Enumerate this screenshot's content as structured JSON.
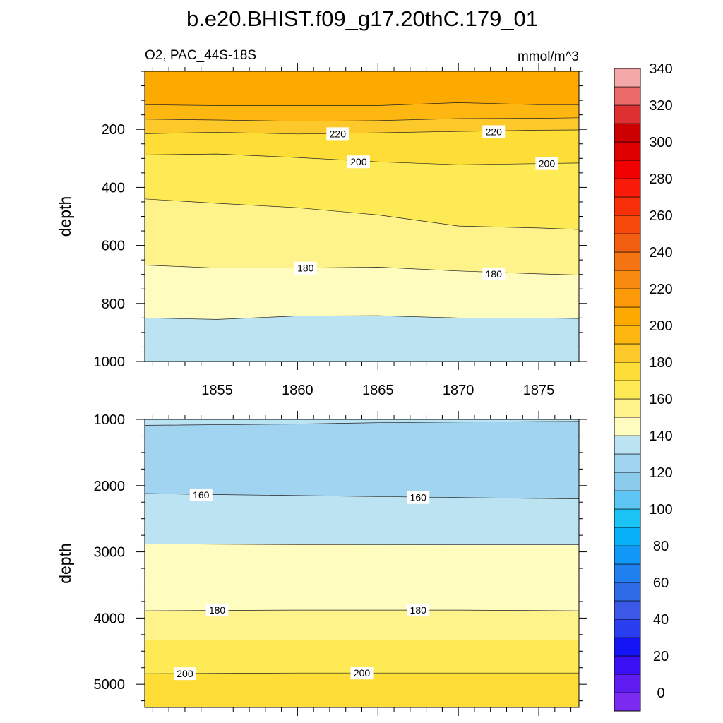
{
  "title": "b.e20.BHIST.f09_g17.20thC.179_01",
  "left_subtitle": "O2, PAC_44S-18S",
  "right_subtitle": "mmol/m^3",
  "chart_data": {
    "type": "heatmap",
    "xlabel": "",
    "xlim": [
      1850.5,
      1877.5
    ],
    "xticks": [
      1855,
      1860,
      1865,
      1870,
      1875
    ],
    "panels": [
      {
        "ylabel": "depth",
        "ylim": [
          0,
          1000
        ],
        "yticks": [
          200,
          400,
          600,
          800,
          1000
        ],
        "bands": [
          {
            "level": 240,
            "color": "#fdaa00",
            "contour": [
              [
                1850.5,
                115
              ],
              [
                1855,
                118
              ],
              [
                1860,
                118
              ],
              [
                1865,
                118
              ],
              [
                1870,
                108
              ],
              [
                1875,
                115
              ],
              [
                1877.5,
                115
              ]
            ]
          },
          {
            "level": 230,
            "color": "#fdb710",
            "contour": [
              [
                1850.5,
                165
              ],
              [
                1855,
                168
              ],
              [
                1860,
                172
              ],
              [
                1865,
                170
              ],
              [
                1870,
                163
              ],
              [
                1875,
                162
              ],
              [
                1877.5,
                160
              ]
            ]
          },
          {
            "level": 220,
            "color": "#fdc92a",
            "contour": [
              [
                1850.5,
                215
              ],
              [
                1855,
                210
              ],
              [
                1860,
                216
              ],
              [
                1865,
                212
              ],
              [
                1870,
                207
              ],
              [
                1875,
                203
              ],
              [
                1877.5,
                202
              ]
            ]
          },
          {
            "level": 210,
            "color": "#fddd36",
            "contour": [
              [
                1850.5,
                288
              ],
              [
                1855,
                285
              ],
              [
                1860,
                297
              ],
              [
                1865,
                312
              ],
              [
                1870,
                322
              ],
              [
                1875,
                318
              ],
              [
                1877.5,
                316
              ]
            ]
          },
          {
            "level": 200,
            "color": "#fdea55",
            "contour": [
              [
                1850.5,
                440
              ],
              [
                1855,
                455
              ],
              [
                1860,
                470
              ],
              [
                1865,
                495
              ],
              [
                1870,
                533
              ],
              [
                1875,
                540
              ],
              [
                1877.5,
                545
              ]
            ]
          },
          {
            "level": 190,
            "color": "#fef38a",
            "contour": [
              [
                1850.5,
                668
              ],
              [
                1855,
                678
              ],
              [
                1860,
                678
              ],
              [
                1865,
                675
              ],
              [
                1870,
                688
              ],
              [
                1875,
                698
              ],
              [
                1877.5,
                702
              ]
            ]
          },
          {
            "level": 180,
            "color": "#fffcc0",
            "contour": [
              [
                1850.5,
                850
              ],
              [
                1855,
                855
              ],
              [
                1860,
                843
              ],
              [
                1865,
                842
              ],
              [
                1870,
                850
              ],
              [
                1875,
                850
              ],
              [
                1877.5,
                852
              ]
            ]
          },
          {
            "level": 170,
            "color": "#bce3f2",
            "contour": null
          }
        ],
        "contour_labels": [
          {
            "text": "220",
            "x": 1862.5,
            "y": 215
          },
          {
            "text": "220",
            "x": 1872.2,
            "y": 208
          },
          {
            "text": "200",
            "x": 1863.8,
            "y": 312
          },
          {
            "text": "200",
            "x": 1875.5,
            "y": 318
          },
          {
            "text": "180",
            "x": 1860.5,
            "y": 678
          },
          {
            "text": "180",
            "x": 1872.2,
            "y": 698
          }
        ]
      },
      {
        "ylabel": "depth",
        "ylim": [
          1000,
          5350
        ],
        "yticks": [
          1000,
          2000,
          3000,
          4000,
          5000
        ],
        "bands": [
          {
            "level": 160,
            "color": "#bce3f2",
            "contour": [
              [
                1850.5,
                1090
              ],
              [
                1860,
                1070
              ],
              [
                1865,
                1050
              ],
              [
                1870,
                1040
              ],
              [
                1877.5,
                1030
              ]
            ]
          },
          {
            "level": 150,
            "color": "#a1d4f0",
            "contour": [
              [
                1850.5,
                2120
              ],
              [
                1855,
                2135
              ],
              [
                1860,
                2150
              ],
              [
                1865,
                2165
              ],
              [
                1870,
                2180
              ],
              [
                1877.5,
                2200
              ]
            ]
          },
          {
            "level": 160,
            "color": "#bce3f2",
            "contour": [
              [
                1850.5,
                2880
              ],
              [
                1860,
                2890
              ],
              [
                1870,
                2895
              ],
              [
                1877.5,
                2895
              ]
            ]
          },
          {
            "level": 170,
            "color": "#fffcc0",
            "contour": [
              [
                1850.5,
                3890
              ],
              [
                1860,
                3880
              ],
              [
                1870,
                3880
              ],
              [
                1877.5,
                3890
              ]
            ]
          },
          {
            "level": 180,
            "color": "#fef38a",
            "contour": [
              [
                1850.5,
                4330
              ],
              [
                1860,
                4330
              ],
              [
                1870,
                4330
              ],
              [
                1877.5,
                4330
              ]
            ]
          },
          {
            "level": 190,
            "color": "#fdea55",
            "contour": [
              [
                1850.5,
                4840
              ],
              [
                1860,
                4830
              ],
              [
                1870,
                4830
              ],
              [
                1877.5,
                4830
              ]
            ]
          },
          {
            "level": 200,
            "color": "#fddd36",
            "contour": null
          }
        ],
        "contour_labels": [
          {
            "text": "160",
            "x": 1854.0,
            "y": 2140
          },
          {
            "text": "160",
            "x": 1867.5,
            "y": 2180
          },
          {
            "text": "180",
            "x": 1855.0,
            "y": 3880
          },
          {
            "text": "180",
            "x": 1867.5,
            "y": 3880
          },
          {
            "text": "200",
            "x": 1853.0,
            "y": 4840
          },
          {
            "text": "200",
            "x": 1864.0,
            "y": 4830
          }
        ]
      }
    ],
    "colorbar": {
      "labels": [
        "0",
        "20",
        "40",
        "60",
        "80",
        "100",
        "120",
        "140",
        "160",
        "180",
        "200",
        "220",
        "240",
        "260",
        "280",
        "300",
        "320",
        "340"
      ],
      "colors": [
        "#7b2bf0",
        "#5e1cf0",
        "#3a10f2",
        "#1414f5",
        "#2a3ef0",
        "#3b58e6",
        "#2f6ae6",
        "#1f80ee",
        "#1197f5",
        "#08b0f7",
        "#1cc4f6",
        "#5ec6f5",
        "#8bcbeb",
        "#a1d4f0",
        "#bce3f2",
        "#fffcc0",
        "#fef38a",
        "#fdea55",
        "#fddd36",
        "#fdc92a",
        "#fdb710",
        "#fdaa00",
        "#fd9a0a",
        "#f98a10",
        "#f57412",
        "#f15e10",
        "#f54a0c",
        "#f8300a",
        "#fa1a0a",
        "#f00000",
        "#de0000",
        "#cc0000",
        "#de3030",
        "#eb6a6a",
        "#f5a8a8"
      ]
    }
  }
}
